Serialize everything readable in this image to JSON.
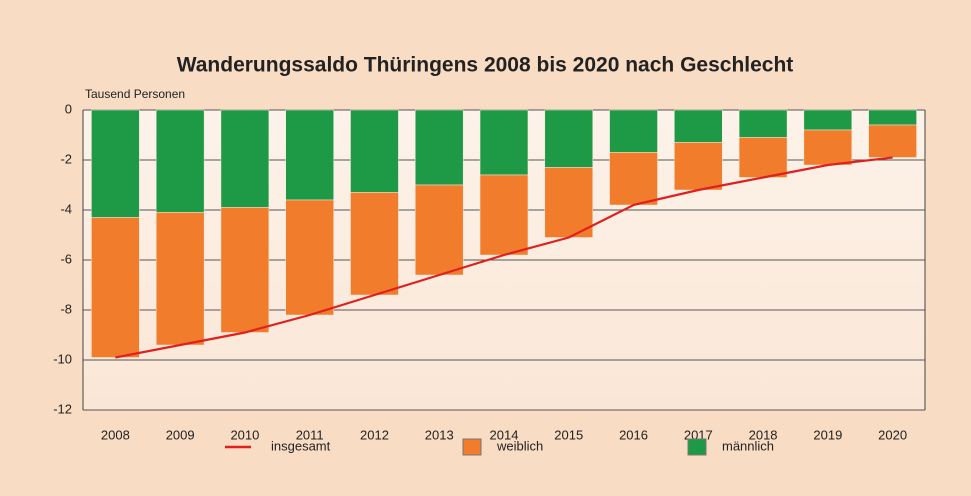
{
  "chart_data": {
    "type": "stacked_bar_line",
    "title": "Wanderungssaldo Thüringens 2008 bis 2020 nach Geschlecht",
    "y_label": "Tausend Personen",
    "categories": [
      "2008",
      "2009",
      "2010",
      "2011",
      "2012",
      "2013",
      "2014",
      "2015",
      "2016",
      "2017",
      "2018",
      "2019",
      "2020"
    ],
    "series": [
      {
        "name": "männlich",
        "color": "#1e9a46",
        "kind": "bar",
        "values": [
          -4.3,
          -4.1,
          -3.9,
          -3.6,
          -3.3,
          -3.0,
          -2.6,
          -2.3,
          -1.7,
          -1.3,
          -1.1,
          -0.8,
          -0.6
        ]
      },
      {
        "name": "weiblich",
        "color": "#f07c2c",
        "kind": "bar",
        "values": [
          -5.6,
          -5.3,
          -5.0,
          -4.6,
          -4.1,
          -3.6,
          -3.2,
          -2.8,
          -2.1,
          -1.9,
          -1.6,
          -1.4,
          -1.3
        ]
      },
      {
        "name": "insgesamt",
        "color": "#e0201e",
        "kind": "line",
        "values": [
          -9.9,
          -9.4,
          -8.9,
          -8.2,
          -7.4,
          -6.6,
          -5.8,
          -5.1,
          -3.8,
          -3.2,
          -2.7,
          -2.2,
          -1.9
        ]
      }
    ],
    "ylim": [
      -12,
      0
    ],
    "yticks": [
      0,
      -2,
      -4,
      -6,
      -8,
      -10,
      -12
    ],
    "grid": true
  }
}
